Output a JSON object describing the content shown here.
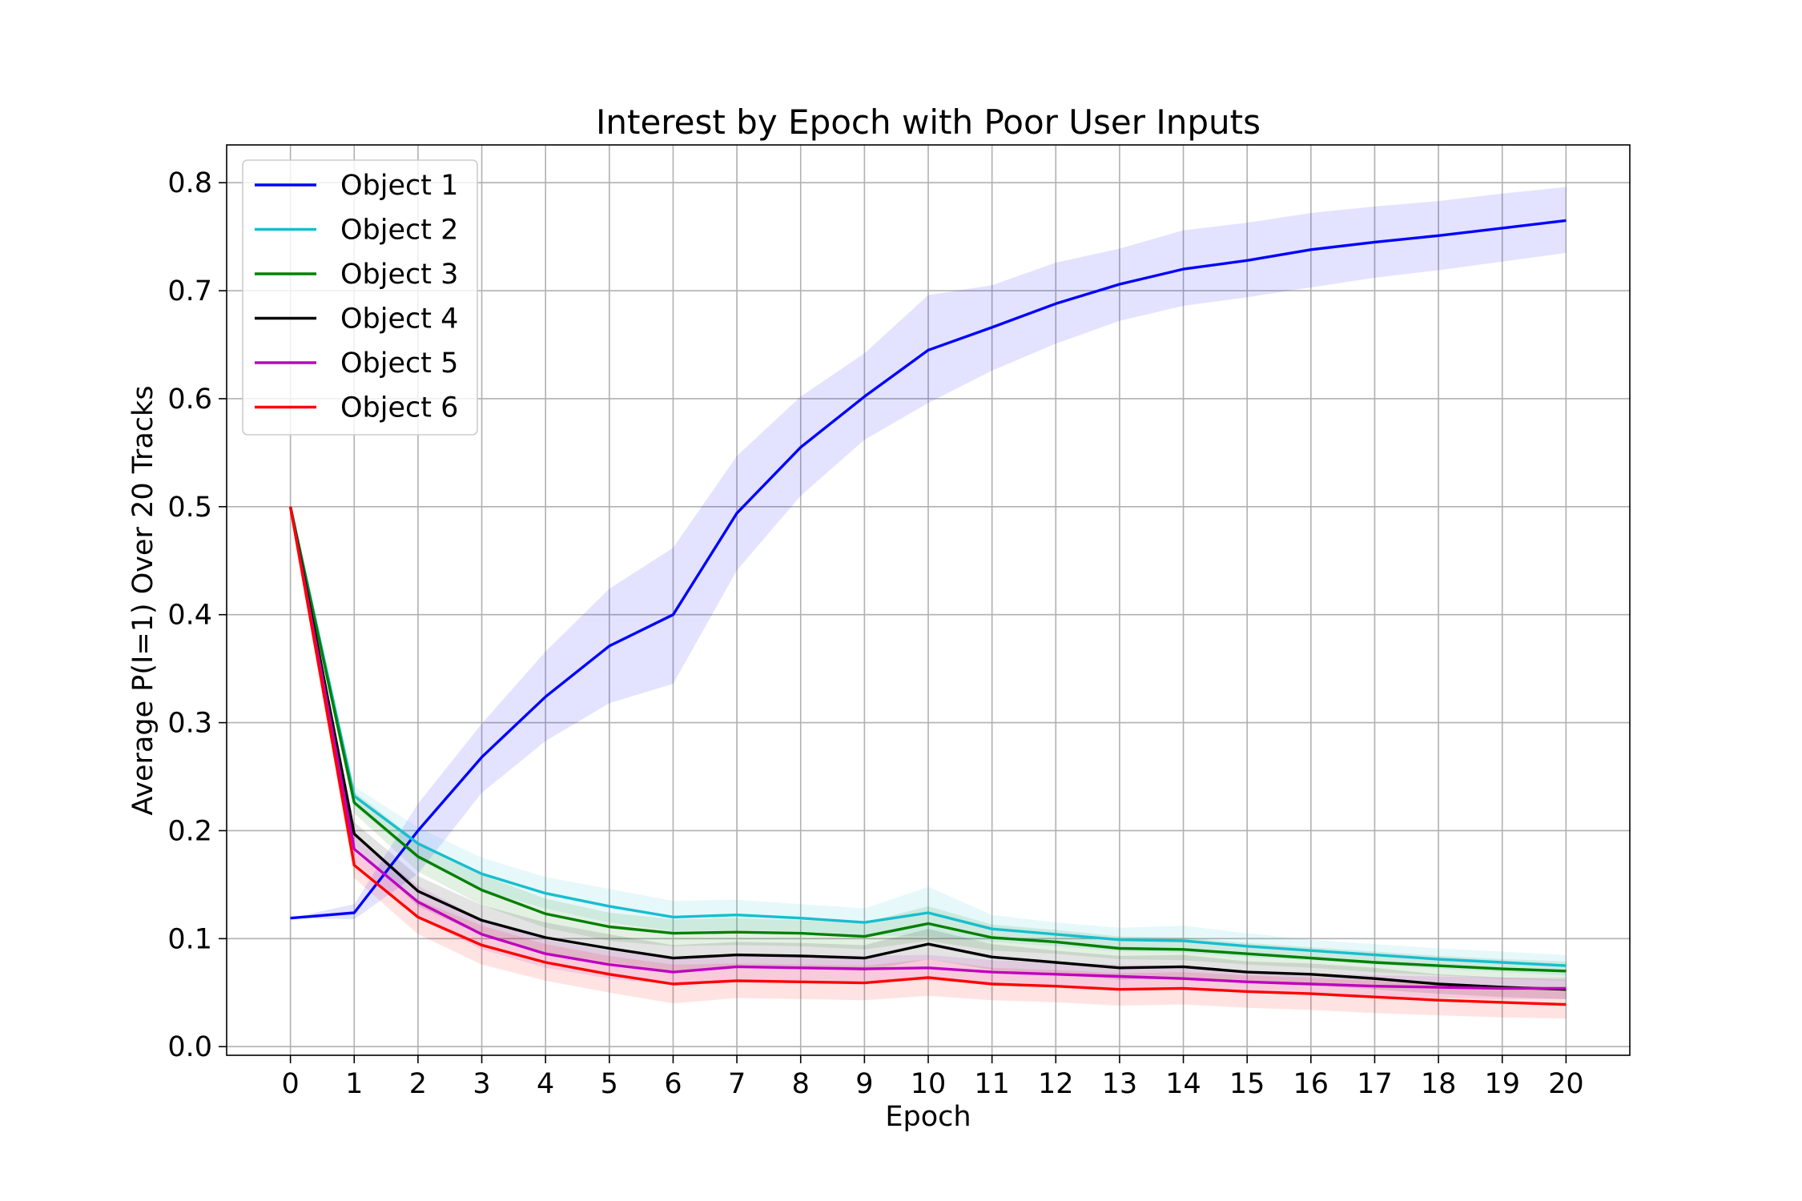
{
  "chart_data": {
    "type": "line",
    "title": "Interest by Epoch with Poor User Inputs",
    "xlabel": "Epoch",
    "ylabel": "Average P(I=1) Over 20 Tracks",
    "xlim": [
      -1,
      21
    ],
    "ylim": [
      -0.008,
      0.835
    ],
    "xticks": [
      "0",
      "1",
      "2",
      "3",
      "4",
      "5",
      "6",
      "7",
      "8",
      "9",
      "10",
      "11",
      "12",
      "13",
      "14",
      "15",
      "16",
      "17",
      "18",
      "19",
      "20"
    ],
    "yticks": [
      "0.0",
      "0.1",
      "0.2",
      "0.3",
      "0.4",
      "0.5",
      "0.6",
      "0.7",
      "0.8"
    ],
    "grid": true,
    "legend_position": "upper-left",
    "x": [
      0,
      1,
      2,
      3,
      4,
      5,
      6,
      7,
      8,
      9,
      10,
      11,
      12,
      13,
      14,
      15,
      16,
      17,
      18,
      19,
      20
    ],
    "series": [
      {
        "name": "Object 1",
        "color": "#0000ff",
        "values": [
          0.119,
          0.124,
          0.2,
          0.268,
          0.324,
          0.371,
          0.4,
          0.494,
          0.555,
          0.602,
          0.645,
          0.666,
          0.688,
          0.706,
          0.72,
          0.728,
          0.738,
          0.745,
          0.751,
          0.758,
          0.765
        ],
        "band_low": [
          0.119,
          0.118,
          0.16,
          0.235,
          0.283,
          0.318,
          0.336,
          0.441,
          0.51,
          0.562,
          0.596,
          0.626,
          0.651,
          0.672,
          0.686,
          0.694,
          0.703,
          0.712,
          0.719,
          0.727,
          0.735
        ],
        "band_high": [
          0.119,
          0.132,
          0.225,
          0.299,
          0.366,
          0.424,
          0.462,
          0.547,
          0.602,
          0.642,
          0.696,
          0.705,
          0.726,
          0.739,
          0.756,
          0.763,
          0.772,
          0.778,
          0.783,
          0.79,
          0.796
        ]
      },
      {
        "name": "Object 2",
        "color": "#17becf",
        "values": [
          0.5,
          0.232,
          0.188,
          0.16,
          0.142,
          0.13,
          0.12,
          0.122,
          0.119,
          0.115,
          0.124,
          0.109,
          0.104,
          0.099,
          0.098,
          0.093,
          0.089,
          0.085,
          0.081,
          0.078,
          0.075
        ],
        "band_low": [
          0.5,
          0.223,
          0.173,
          0.145,
          0.128,
          0.115,
          0.107,
          0.108,
          0.107,
          0.103,
          0.102,
          0.097,
          0.093,
          0.088,
          0.087,
          0.083,
          0.08,
          0.076,
          0.072,
          0.069,
          0.066
        ],
        "band_high": [
          0.5,
          0.241,
          0.203,
          0.175,
          0.157,
          0.146,
          0.135,
          0.136,
          0.132,
          0.128,
          0.148,
          0.122,
          0.115,
          0.11,
          0.112,
          0.105,
          0.099,
          0.095,
          0.091,
          0.088,
          0.085
        ]
      },
      {
        "name": "Object 3",
        "color": "#008000",
        "values": [
          0.5,
          0.226,
          0.176,
          0.145,
          0.123,
          0.111,
          0.105,
          0.106,
          0.105,
          0.102,
          0.114,
          0.101,
          0.097,
          0.091,
          0.09,
          0.086,
          0.082,
          0.078,
          0.075,
          0.072,
          0.07
        ],
        "band_low": [
          0.5,
          0.216,
          0.162,
          0.131,
          0.11,
          0.098,
          0.093,
          0.094,
          0.093,
          0.09,
          0.098,
          0.089,
          0.086,
          0.081,
          0.08,
          0.076,
          0.073,
          0.069,
          0.066,
          0.063,
          0.061
        ],
        "band_high": [
          0.5,
          0.236,
          0.19,
          0.159,
          0.137,
          0.124,
          0.118,
          0.119,
          0.117,
          0.115,
          0.13,
          0.113,
          0.108,
          0.102,
          0.101,
          0.096,
          0.092,
          0.088,
          0.084,
          0.081,
          0.079
        ]
      },
      {
        "name": "Object 4",
        "color": "#000000",
        "values": [
          0.5,
          0.197,
          0.144,
          0.117,
          0.101,
          0.091,
          0.082,
          0.085,
          0.084,
          0.082,
          0.095,
          0.083,
          0.078,
          0.073,
          0.074,
          0.069,
          0.067,
          0.063,
          0.058,
          0.055,
          0.053
        ],
        "band_low": [
          0.5,
          0.186,
          0.13,
          0.103,
          0.087,
          0.078,
          0.07,
          0.073,
          0.072,
          0.07,
          0.081,
          0.071,
          0.067,
          0.062,
          0.063,
          0.059,
          0.057,
          0.053,
          0.049,
          0.046,
          0.044
        ],
        "band_high": [
          0.5,
          0.208,
          0.158,
          0.131,
          0.115,
          0.104,
          0.094,
          0.097,
          0.096,
          0.094,
          0.109,
          0.095,
          0.089,
          0.084,
          0.085,
          0.079,
          0.077,
          0.073,
          0.067,
          0.064,
          0.062
        ]
      },
      {
        "name": "Object 5",
        "color": "#bf00bf",
        "values": [
          0.5,
          0.183,
          0.134,
          0.104,
          0.086,
          0.076,
          0.069,
          0.074,
          0.073,
          0.072,
          0.073,
          0.069,
          0.067,
          0.065,
          0.063,
          0.06,
          0.058,
          0.056,
          0.055,
          0.054,
          0.054
        ],
        "band_low": [
          0.5,
          0.171,
          0.119,
          0.09,
          0.073,
          0.063,
          0.057,
          0.062,
          0.061,
          0.06,
          0.061,
          0.058,
          0.056,
          0.054,
          0.052,
          0.05,
          0.048,
          0.046,
          0.045,
          0.044,
          0.044
        ],
        "band_high": [
          0.5,
          0.195,
          0.149,
          0.118,
          0.099,
          0.089,
          0.081,
          0.086,
          0.085,
          0.084,
          0.085,
          0.08,
          0.078,
          0.076,
          0.074,
          0.07,
          0.068,
          0.066,
          0.065,
          0.064,
          0.064
        ]
      },
      {
        "name": "Object 6",
        "color": "#ff0000",
        "values": [
          0.5,
          0.168,
          0.12,
          0.094,
          0.078,
          0.067,
          0.058,
          0.061,
          0.06,
          0.059,
          0.064,
          0.058,
          0.056,
          0.053,
          0.054,
          0.051,
          0.049,
          0.046,
          0.043,
          0.041,
          0.039
        ],
        "band_low": [
          0.5,
          0.156,
          0.104,
          0.076,
          0.061,
          0.05,
          0.04,
          0.045,
          0.044,
          0.043,
          0.047,
          0.043,
          0.041,
          0.038,
          0.039,
          0.036,
          0.034,
          0.031,
          0.029,
          0.027,
          0.026
        ],
        "band_high": [
          0.5,
          0.18,
          0.136,
          0.112,
          0.095,
          0.084,
          0.076,
          0.077,
          0.076,
          0.075,
          0.081,
          0.073,
          0.071,
          0.068,
          0.069,
          0.066,
          0.064,
          0.061,
          0.057,
          0.055,
          0.052
        ]
      }
    ]
  }
}
